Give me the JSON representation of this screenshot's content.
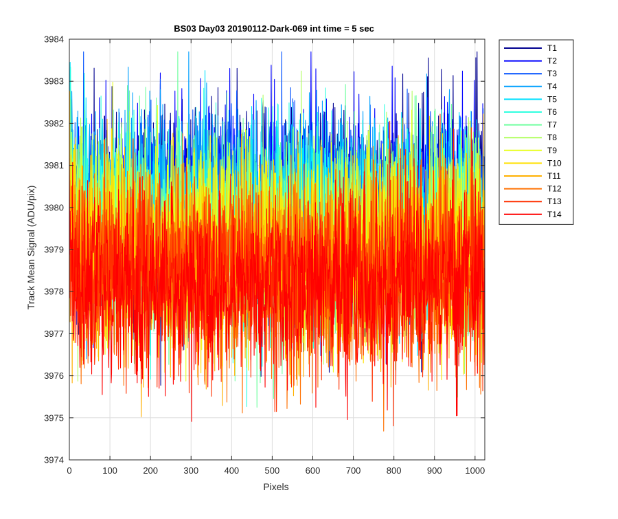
{
  "chart_data": {
    "type": "line",
    "title": "BS03 Day03 20190112-Dark-069 int time = 5 sec",
    "xlabel": "Pixels",
    "ylabel": "Track Mean Signal (ADU/pix)",
    "xlim": [
      0,
      1024
    ],
    "ylim": [
      3974,
      3984
    ],
    "xticks": [
      "0",
      "100",
      "200",
      "300",
      "400",
      "500",
      "600",
      "700",
      "800",
      "900",
      "1000"
    ],
    "yticks": [
      "3974",
      "3975",
      "3976",
      "3977",
      "3978",
      "3979",
      "3980",
      "3981",
      "3982",
      "3983",
      "3984"
    ],
    "grid": true,
    "legend_position": "outside-top-right",
    "n_points_per_series": 1024,
    "series": [
      {
        "name": "T1",
        "color": "#00008f",
        "mean": 3980.2,
        "noise_sd": 1.15
      },
      {
        "name": "T2",
        "color": "#0000ff",
        "mean": 3980.1,
        "noise_sd": 1.15
      },
      {
        "name": "T3",
        "color": "#0050ff",
        "mean": 3980.0,
        "noise_sd": 1.15
      },
      {
        "name": "T4",
        "color": "#00a0ff",
        "mean": 3979.9,
        "noise_sd": 1.15
      },
      {
        "name": "T5",
        "color": "#00e0ff",
        "mean": 3979.7,
        "noise_sd": 1.15
      },
      {
        "name": "T6",
        "color": "#30ffe0",
        "mean": 3979.6,
        "noise_sd": 1.15
      },
      {
        "name": "T7",
        "color": "#70ffa0",
        "mean": 3979.4,
        "noise_sd": 1.15
      },
      {
        "name": "T8",
        "color": "#b0ff60",
        "mean": 3979.3,
        "noise_sd": 1.15
      },
      {
        "name": "T9",
        "color": "#e8ff20",
        "mean": 3979.1,
        "noise_sd": 1.15
      },
      {
        "name": "T10",
        "color": "#ffe000",
        "mean": 3978.9,
        "noise_sd": 1.15
      },
      {
        "name": "T11",
        "color": "#ffb000",
        "mean": 3978.7,
        "noise_sd": 1.15
      },
      {
        "name": "T12",
        "color": "#ff7000",
        "mean": 3978.5,
        "noise_sd": 1.15
      },
      {
        "name": "T13",
        "color": "#ff3000",
        "mean": 3978.4,
        "noise_sd": 1.15
      },
      {
        "name": "T14",
        "color": "#ff0000",
        "mean": 3978.2,
        "noise_sd": 1.15
      }
    ]
  }
}
